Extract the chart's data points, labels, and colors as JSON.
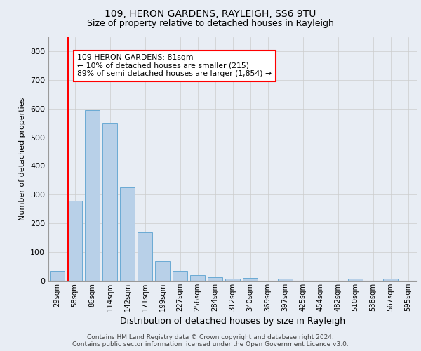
{
  "title_line1": "109, HERON GARDENS, RAYLEIGH, SS6 9TU",
  "title_line2": "Size of property relative to detached houses in Rayleigh",
  "xlabel": "Distribution of detached houses by size in Rayleigh",
  "ylabel": "Number of detached properties",
  "footer_line1": "Contains HM Land Registry data © Crown copyright and database right 2024.",
  "footer_line2": "Contains public sector information licensed under the Open Government Licence v3.0.",
  "bins": [
    "29sqm",
    "58sqm",
    "86sqm",
    "114sqm",
    "142sqm",
    "171sqm",
    "199sqm",
    "227sqm",
    "256sqm",
    "284sqm",
    "312sqm",
    "340sqm",
    "369sqm",
    "397sqm",
    "425sqm",
    "454sqm",
    "482sqm",
    "510sqm",
    "538sqm",
    "567sqm",
    "595sqm"
  ],
  "bar_values": [
    35,
    280,
    595,
    550,
    325,
    170,
    68,
    35,
    20,
    12,
    8,
    10,
    0,
    8,
    0,
    0,
    0,
    8,
    0,
    8,
    0
  ],
  "bar_color": "#b8d0e8",
  "bar_edge_color": "#6aaad4",
  "vline_color": "red",
  "vline_pos": 0.6,
  "annotation_text": "109 HERON GARDENS: 81sqm\n← 10% of detached houses are smaller (215)\n89% of semi-detached houses are larger (1,854) →",
  "annotation_box_color": "white",
  "annotation_box_edge": "red",
  "ylim": [
    0,
    850
  ],
  "yticks": [
    0,
    100,
    200,
    300,
    400,
    500,
    600,
    700,
    800
  ],
  "grid_color": "#cccccc",
  "bg_color": "#e8edf4",
  "plot_bg_color": "#e8edf4"
}
